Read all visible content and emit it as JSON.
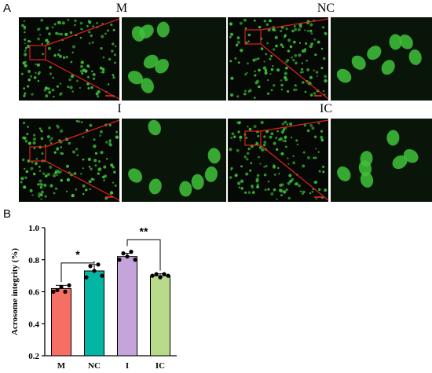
{
  "panels": {
    "a": "A",
    "b": "B"
  },
  "images": [
    {
      "title": "M"
    },
    {
      "title": "NC"
    },
    {
      "title": "I"
    },
    {
      "title": "IC"
    }
  ],
  "colors": {
    "fluorescence": "#3fc23a",
    "background": "#050805",
    "zoom_box": "#e0211d",
    "scale_bar": "#ff2a2a"
  },
  "chart_data": {
    "type": "bar",
    "categories": [
      "M",
      "NC",
      "I",
      "IC"
    ],
    "values": [
      0.62,
      0.73,
      0.82,
      0.7
    ],
    "errors": [
      0.02,
      0.04,
      0.02,
      0.012
    ],
    "points": [
      [
        0.6,
        0.61,
        0.63,
        0.6,
        0.64
      ],
      [
        0.69,
        0.76,
        0.73,
        0.77,
        0.7
      ],
      [
        0.8,
        0.84,
        0.82,
        0.85,
        0.8
      ],
      [
        0.7,
        0.71,
        0.69,
        0.71,
        0.7
      ]
    ],
    "bar_colors": [
      "#f56f64",
      "#03b6a4",
      "#c5a3db",
      "#b9d98b"
    ],
    "ylabel": "Acrosome integrity (%)",
    "ylim": [
      0.2,
      1.0
    ],
    "yticks": [
      "0.2",
      "0.4",
      "0.6",
      "0.8",
      "1.0"
    ],
    "significance": [
      {
        "from": "M",
        "to": "NC",
        "label": "*"
      },
      {
        "from": "I",
        "to": "IC",
        "label": "**"
      }
    ],
    "grid": false
  }
}
